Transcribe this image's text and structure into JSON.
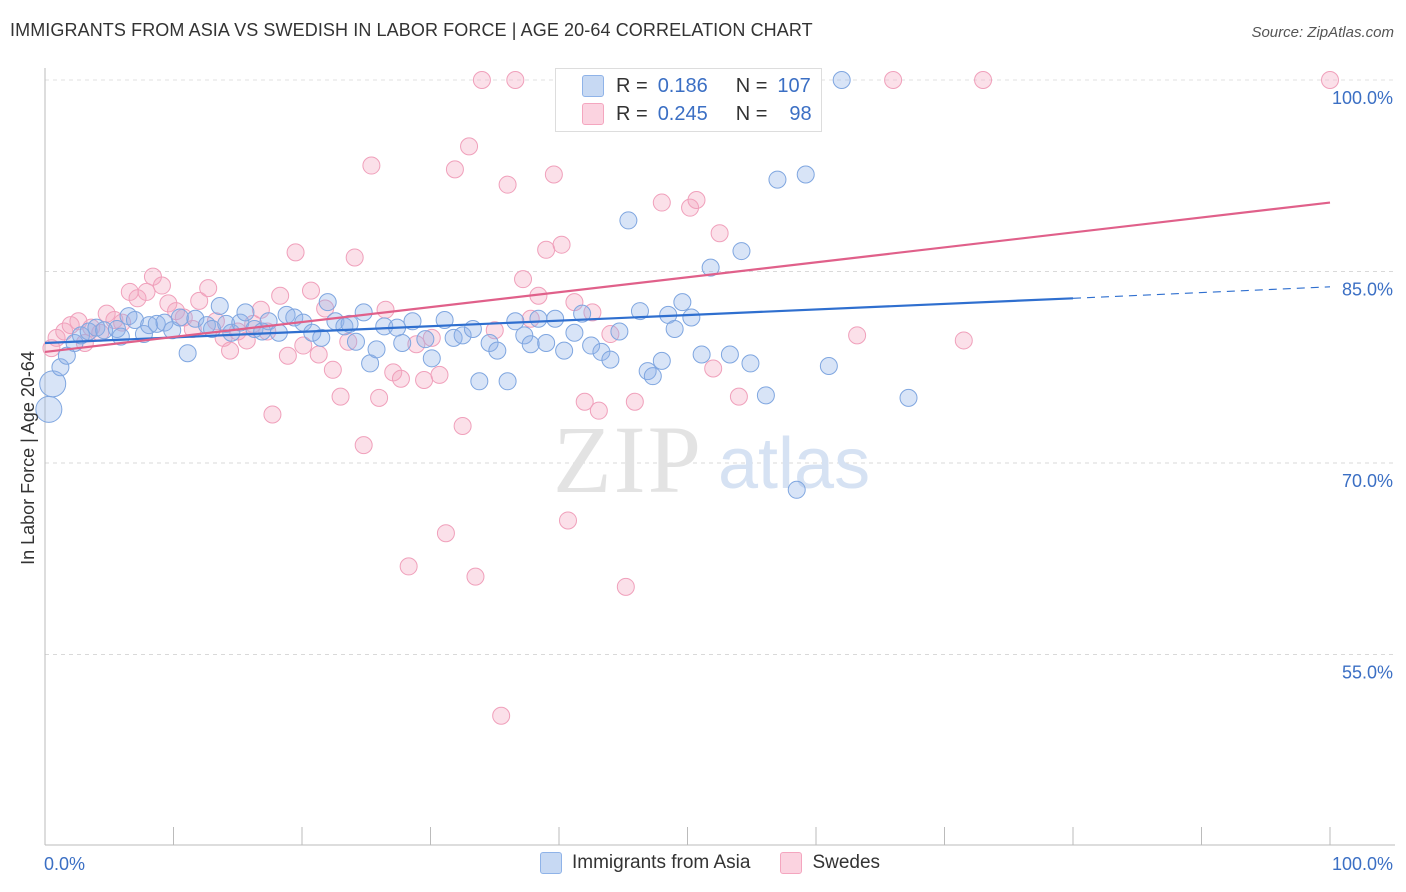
{
  "title": "IMMIGRANTS FROM ASIA VS SWEDISH IN LABOR FORCE | AGE 20-64 CORRELATION CHART",
  "source": "Source: ZipAtlas.com",
  "watermark": {
    "zip": "ZIP",
    "atlas": "atlas"
  },
  "legend_stats": [
    {
      "r_label": "R =",
      "r_value": "0.186",
      "n_label": "N =",
      "n_value": "107"
    },
    {
      "r_label": "R =",
      "r_value": "0.245",
      "n_label": "N =",
      "n_value": "98"
    }
  ],
  "chart_data": {
    "type": "scatter",
    "title": "IMMIGRANTS FROM ASIA VS SWEDISH IN LABOR FORCE | AGE 20-64 CORRELATION CHART",
    "xlabel": "",
    "ylabel": "In Labor Force | Age 20-64",
    "xlim": [
      0,
      100
    ],
    "ylim": [
      40,
      101.5
    ],
    "x_tick_labels": [
      "0.0%",
      "100.0%"
    ],
    "y_ticks": [
      55,
      70,
      85,
      100
    ],
    "y_tick_labels": [
      "55.0%",
      "70.0%",
      "85.0%",
      "100.0%"
    ],
    "grid": true,
    "colors": {
      "asia": "#8fb3e8",
      "asia_line": "#2f6fcf",
      "swedes": "#f4a6bf",
      "swedes_line": "#e0608a"
    },
    "series": [
      {
        "name": "Immigrants from Asia",
        "r": 0.186,
        "n": 107,
        "trend": {
          "x0": 0,
          "y0": 79.4,
          "x1": 80,
          "y1": 82.9,
          "dash_to_x": 100,
          "dash_to_y": 83.8
        },
        "points": [
          [
            0.3,
            74.2
          ],
          [
            0.6,
            76.2
          ],
          [
            1.2,
            77.5
          ],
          [
            1.7,
            78.4
          ],
          [
            2.3,
            79.4
          ],
          [
            2.8,
            80.0
          ],
          [
            3.4,
            80.3
          ],
          [
            4.0,
            80.6
          ],
          [
            4.6,
            80.4
          ],
          [
            5.6,
            80.5
          ],
          [
            5.9,
            79.9
          ],
          [
            6.5,
            81.5
          ],
          [
            7.0,
            81.2
          ],
          [
            7.7,
            80.1
          ],
          [
            8.1,
            80.8
          ],
          [
            8.7,
            80.9
          ],
          [
            9.3,
            81.0
          ],
          [
            9.9,
            80.4
          ],
          [
            10.5,
            81.4
          ],
          [
            11.1,
            78.6
          ],
          [
            11.7,
            81.3
          ],
          [
            12.6,
            80.8
          ],
          [
            13.0,
            80.5
          ],
          [
            13.6,
            82.3
          ],
          [
            14.1,
            80.9
          ],
          [
            14.5,
            80.2
          ],
          [
            15.2,
            81.0
          ],
          [
            15.6,
            81.8
          ],
          [
            16.3,
            80.5
          ],
          [
            16.9,
            80.3
          ],
          [
            17.4,
            81.1
          ],
          [
            18.2,
            80.2
          ],
          [
            18.8,
            81.6
          ],
          [
            19.4,
            81.4
          ],
          [
            20.1,
            81.0
          ],
          [
            20.8,
            80.2
          ],
          [
            21.5,
            79.8
          ],
          [
            22.0,
            82.6
          ],
          [
            22.6,
            81.1
          ],
          [
            23.3,
            80.7
          ],
          [
            23.7,
            80.9
          ],
          [
            24.2,
            79.5
          ],
          [
            24.8,
            81.8
          ],
          [
            25.3,
            77.8
          ],
          [
            25.8,
            78.9
          ],
          [
            26.4,
            80.7
          ],
          [
            27.4,
            80.6
          ],
          [
            27.8,
            79.4
          ],
          [
            28.6,
            81.1
          ],
          [
            29.6,
            79.7
          ],
          [
            30.1,
            78.2
          ],
          [
            31.1,
            81.2
          ],
          [
            31.8,
            79.8
          ],
          [
            32.5,
            80.0
          ],
          [
            33.3,
            80.5
          ],
          [
            33.8,
            76.4
          ],
          [
            34.6,
            79.4
          ],
          [
            35.2,
            78.8
          ],
          [
            36.0,
            76.4
          ],
          [
            36.6,
            81.1
          ],
          [
            37.3,
            80.0
          ],
          [
            37.8,
            79.3
          ],
          [
            38.4,
            81.3
          ],
          [
            39.0,
            79.4
          ],
          [
            39.7,
            81.3
          ],
          [
            40.4,
            78.8
          ],
          [
            41.2,
            80.2
          ],
          [
            41.8,
            81.7
          ],
          [
            42.5,
            79.2
          ],
          [
            43.3,
            78.7
          ],
          [
            44.0,
            78.1
          ],
          [
            44.7,
            80.3
          ],
          [
            45.4,
            89.0
          ],
          [
            46.3,
            81.9
          ],
          [
            46.9,
            77.2
          ],
          [
            47.3,
            76.8
          ],
          [
            48.0,
            78.0
          ],
          [
            48.5,
            81.6
          ],
          [
            49.0,
            80.5
          ],
          [
            49.6,
            82.6
          ],
          [
            50.3,
            81.4
          ],
          [
            51.1,
            78.5
          ],
          [
            51.8,
            85.3
          ],
          [
            53.3,
            78.5
          ],
          [
            54.2,
            86.6
          ],
          [
            54.9,
            77.8
          ],
          [
            56.1,
            75.3
          ],
          [
            57.0,
            92.2
          ],
          [
            58.5,
            67.9
          ],
          [
            59.2,
            92.6
          ],
          [
            61.0,
            77.6
          ],
          [
            62.0,
            100.0
          ],
          [
            67.2,
            75.1
          ]
        ]
      },
      {
        "name": "Swedes",
        "r": 0.245,
        "n": 98,
        "trend": {
          "x0": 0,
          "y0": 78.7,
          "x1": 100,
          "y1": 90.4
        },
        "points": [
          [
            0.5,
            79.0
          ],
          [
            0.9,
            79.8
          ],
          [
            1.5,
            80.3
          ],
          [
            2.0,
            80.8
          ],
          [
            2.6,
            81.1
          ],
          [
            3.1,
            79.4
          ],
          [
            3.6,
            80.6
          ],
          [
            4.3,
            80.2
          ],
          [
            4.8,
            81.7
          ],
          [
            5.4,
            81.2
          ],
          [
            6.0,
            81.0
          ],
          [
            6.6,
            83.4
          ],
          [
            7.2,
            82.9
          ],
          [
            7.9,
            83.4
          ],
          [
            8.4,
            84.6
          ],
          [
            9.1,
            83.9
          ],
          [
            9.6,
            82.5
          ],
          [
            10.2,
            81.9
          ],
          [
            10.8,
            81.4
          ],
          [
            11.5,
            80.5
          ],
          [
            12.0,
            82.7
          ],
          [
            12.7,
            83.7
          ],
          [
            13.3,
            81.1
          ],
          [
            13.9,
            79.8
          ],
          [
            14.4,
            78.8
          ],
          [
            15.0,
            80.3
          ],
          [
            15.7,
            79.6
          ],
          [
            16.2,
            80.9
          ],
          [
            16.8,
            82.0
          ],
          [
            17.3,
            80.3
          ],
          [
            17.7,
            73.8
          ],
          [
            18.3,
            83.1
          ],
          [
            18.9,
            78.4
          ],
          [
            19.5,
            86.5
          ],
          [
            20.1,
            79.2
          ],
          [
            20.7,
            83.5
          ],
          [
            21.3,
            78.5
          ],
          [
            21.8,
            82.1
          ],
          [
            22.4,
            77.3
          ],
          [
            23.0,
            75.2
          ],
          [
            23.6,
            79.5
          ],
          [
            24.1,
            86.1
          ],
          [
            24.8,
            71.4
          ],
          [
            25.4,
            93.3
          ],
          [
            26.0,
            75.1
          ],
          [
            26.5,
            82.0
          ],
          [
            27.1,
            77.1
          ],
          [
            27.7,
            76.6
          ],
          [
            28.3,
            61.9
          ],
          [
            28.9,
            79.3
          ],
          [
            29.5,
            76.5
          ],
          [
            30.1,
            79.8
          ],
          [
            30.7,
            76.9
          ],
          [
            31.2,
            64.5
          ],
          [
            31.9,
            93.0
          ],
          [
            32.5,
            72.9
          ],
          [
            33.0,
            94.8
          ],
          [
            33.5,
            61.1
          ],
          [
            34.0,
            100.0
          ],
          [
            35.0,
            80.4
          ],
          [
            35.5,
            50.2
          ],
          [
            36.0,
            91.8
          ],
          [
            36.6,
            100.0
          ],
          [
            37.2,
            84.4
          ],
          [
            37.8,
            81.3
          ],
          [
            38.4,
            83.1
          ],
          [
            39.0,
            86.7
          ],
          [
            39.6,
            92.6
          ],
          [
            40.2,
            87.1
          ],
          [
            40.7,
            65.5
          ],
          [
            41.2,
            82.6
          ],
          [
            42.0,
            74.8
          ],
          [
            42.6,
            81.8
          ],
          [
            43.1,
            74.1
          ],
          [
            44.0,
            80.1
          ],
          [
            44.7,
            100.0
          ],
          [
            45.2,
            60.3
          ],
          [
            45.9,
            74.8
          ],
          [
            46.6,
            100.0
          ],
          [
            48.0,
            90.4
          ],
          [
            50.2,
            90.0
          ],
          [
            50.7,
            90.6
          ],
          [
            52.0,
            77.4
          ],
          [
            52.5,
            88.0
          ],
          [
            54.0,
            75.2
          ],
          [
            63.2,
            80.0
          ],
          [
            66.0,
            100.0
          ],
          [
            71.5,
            79.6
          ],
          [
            73.0,
            100.0
          ],
          [
            100.0,
            100.0
          ]
        ]
      }
    ]
  }
}
